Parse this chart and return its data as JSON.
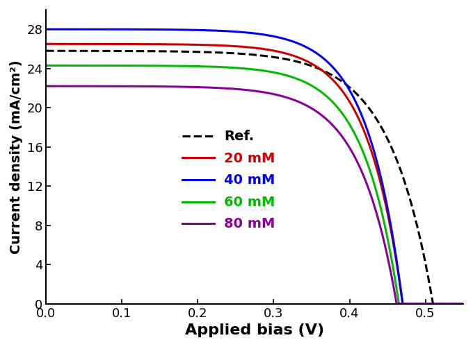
{
  "xlabel": "Applied bias (V)",
  "ylabel": "Current density (mA/cm²)",
  "xlim": [
    0.0,
    0.55
  ],
  "ylim": [
    0,
    30
  ],
  "yticks": [
    0,
    4,
    8,
    12,
    16,
    20,
    24,
    28
  ],
  "xticks": [
    0.0,
    0.1,
    0.2,
    0.3,
    0.4,
    0.5
  ],
  "series": [
    {
      "label": "Ref.",
      "color": "#000000",
      "linestyle": "--",
      "Jsc": 25.8,
      "Voc": 0.51,
      "n_ideal": 2.2
    },
    {
      "label": "20 mM",
      "color": "#cc0000",
      "linestyle": "-",
      "Jsc": 26.5,
      "Voc": 0.47,
      "n_ideal": 1.8
    },
    {
      "label": "40 mM",
      "color": "#0000ee",
      "linestyle": "-",
      "Jsc": 28.0,
      "Voc": 0.47,
      "n_ideal": 1.8
    },
    {
      "label": "60 mM",
      "color": "#00bb00",
      "linestyle": "-",
      "Jsc": 24.3,
      "Voc": 0.465,
      "n_ideal": 1.8
    },
    {
      "label": "80 mM",
      "color": "#880099",
      "linestyle": "-",
      "Jsc": 22.2,
      "Voc": 0.462,
      "n_ideal": 1.9
    }
  ],
  "legend_labels_colors": [
    {
      "label": "Ref.",
      "color": "#000000"
    },
    {
      "label": "20 mM",
      "color": "#cc0000"
    },
    {
      "label": "40 mM",
      "color": "#0000ee"
    },
    {
      "label": "60 mM",
      "color": "#00bb00"
    },
    {
      "label": "80 mM",
      "color": "#880099"
    }
  ],
  "xlabel_fontsize": 16,
  "ylabel_fontsize": 14,
  "tick_fontsize": 13,
  "legend_fontsize": 13,
  "linewidth": 2.2
}
